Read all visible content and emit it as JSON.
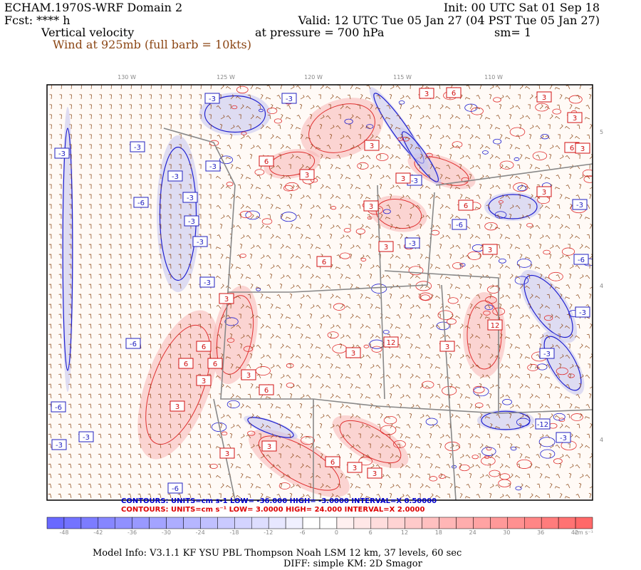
{
  "header": {
    "model": "ECHAM.1970S-WRF Domain 2",
    "forecast": "Fcst: **** h",
    "field": "Vertical velocity",
    "wind": "Wind at 925mb (full barb = 10kts)",
    "init": "Init: 00 UTC Sat 01 Sep 18",
    "valid": "Valid: 12 UTC Tue 05 Jan 27 (04 PST Tue 05 Jan 27)",
    "pressure": "at pressure =  700 hPa",
    "smoothing": "sm= 1"
  },
  "map": {
    "longitudes": [
      "130 W",
      "125 W",
      "120 W",
      "115 W",
      "110 W"
    ],
    "latitudes": [
      "5",
      "4",
      "4"
    ],
    "negative_labels": [
      "-3",
      "-3",
      "-3",
      "-3",
      "-3",
      "-3",
      "-6",
      "-3",
      "-3",
      "-3",
      "-3",
      "-6",
      "-3",
      "-3",
      "-6",
      "-3",
      "-6",
      "-3",
      "-3",
      "-12",
      "-3",
      "-6",
      "-3",
      "-6",
      "-3"
    ],
    "positive_labels": [
      "3",
      "6",
      "3",
      "3",
      "6",
      "3",
      "3",
      "3",
      "6",
      "3",
      "3",
      "3",
      "6",
      "3",
      "3",
      "6",
      "3",
      "3",
      "12",
      "3",
      "12",
      "6",
      "6",
      "6",
      "3",
      "3",
      "6",
      "3",
      "3",
      "3",
      "6",
      "3",
      "3"
    ]
  },
  "contours_negative": "CONTOURS:  UNITS=cm s-1   LOW=  -36.000     HIGH=  -3.0000     INTERVAL=X 0.50000",
  "contours_positive": "CONTOURS:  UNITS=cm s⁻¹   LOW=  3.0000        HIGH=  24.000       INTERVAL=X  2.0000",
  "colorbar": {
    "ticks": [
      "-48",
      "-42",
      "-36",
      "-30",
      "-24",
      "-18",
      "-12",
      "-6",
      "0",
      "6",
      "12",
      "18",
      "24",
      "30",
      "36",
      "42"
    ],
    "units": "cm s⁻¹"
  },
  "footer": {
    "model_info": "Model Info: V3.1.1    KF      YSU PBL   Thompson     Noah LSM   12 km,    37 levels,    60 sec",
    "diff": "DIFF: simple KM: 2D Smagor"
  }
}
